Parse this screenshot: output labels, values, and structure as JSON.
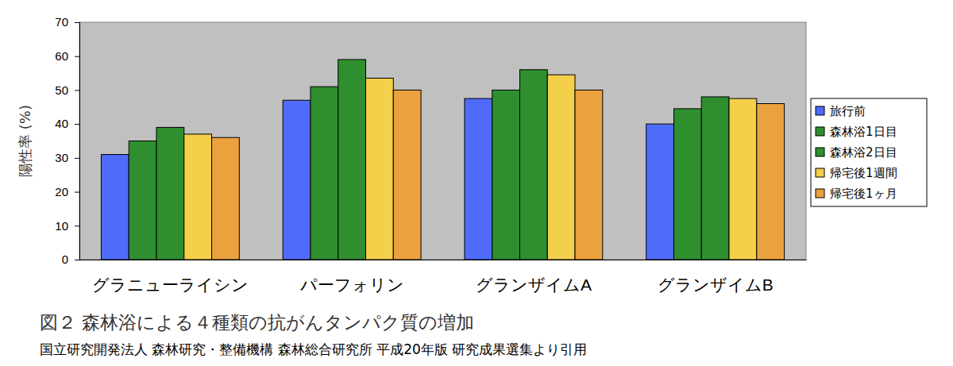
{
  "chart_data": {
    "type": "bar",
    "title": "図２ 森林浴による４種類の抗がんタンパク質の増加",
    "subtitle": "国立研究開発法人 森林研究・整備機構 森林総合研究所 平成20年版 研究成果選集より引用",
    "y_label": "陽性率 (%)",
    "categories": [
      "グラニューライシン",
      "パーフォリン",
      "グランザイムA",
      "グランザイムB"
    ],
    "series": [
      {
        "name": "旅行前",
        "color": "#4f6bfb",
        "values": [
          31,
          47,
          47.5,
          40
        ]
      },
      {
        "name": "森林浴1日目",
        "color": "#2f8f2f",
        "values": [
          35,
          51,
          50,
          44.5
        ]
      },
      {
        "name": "森林浴2日目",
        "color": "#2f8f2f",
        "values": [
          39,
          59,
          56,
          48
        ]
      },
      {
        "name": "帰宅後1週間",
        "color": "#f4cf4a",
        "values": [
          37,
          53.5,
          54.5,
          47.5
        ]
      },
      {
        "name": "帰宅後1ヶ月",
        "color": "#eba23e",
        "values": [
          36,
          50,
          50,
          46
        ]
      }
    ],
    "ylim": [
      0,
      70
    ],
    "yticks": [
      0,
      10,
      20,
      30,
      40,
      50,
      60,
      70
    ],
    "grid": false,
    "legend": "right"
  }
}
